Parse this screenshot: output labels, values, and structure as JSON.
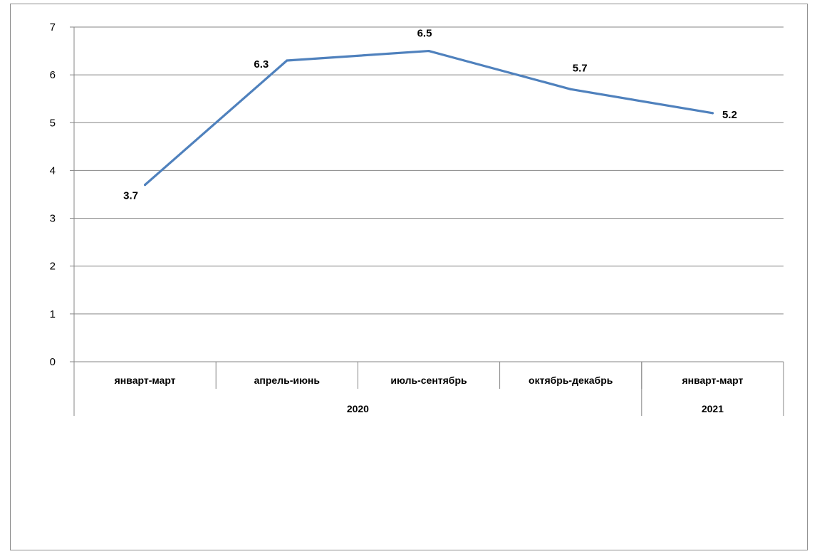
{
  "chart_data": {
    "type": "line",
    "categories": [
      "январт-март",
      "апрель-июнь",
      "июль-сентябрь",
      "октябрь-декабрь",
      "январт-март"
    ],
    "groups": [
      {
        "label": "2020",
        "span": 4
      },
      {
        "label": "2021",
        "span": 1
      }
    ],
    "series": [
      {
        "values": [
          3.7,
          6.3,
          6.5,
          5.7,
          5.2
        ],
        "data_labels": [
          "3.7",
          "6.3",
          "6.5",
          "5.7",
          "5.2"
        ],
        "color": "#4f81bd"
      }
    ],
    "yticks": [
      "0",
      "1",
      "2",
      "3",
      "4",
      "5",
      "6",
      "7"
    ],
    "ylim": [
      0,
      7
    ],
    "title": "",
    "xlabel": "",
    "ylabel": "",
    "grid": true,
    "legend": "none"
  }
}
